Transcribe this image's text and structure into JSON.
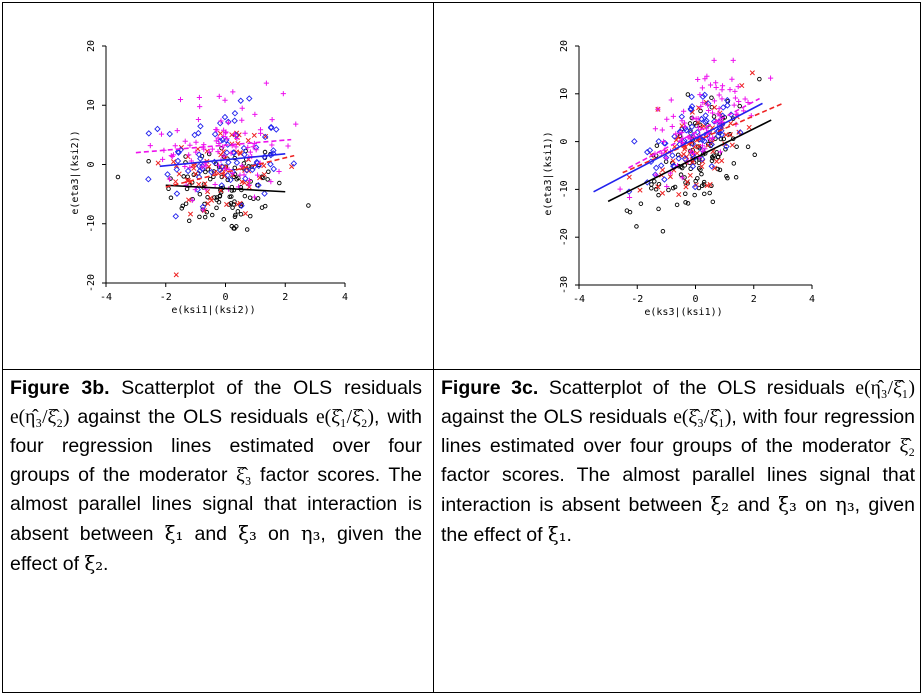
{
  "chart_data": [
    {
      "type": "scatter",
      "panel": "3b",
      "xlabel": "e(ksi1|(ksi2))",
      "ylabel": "e(eta3|(ksi2))",
      "xlim": [
        -4,
        4
      ],
      "ylim": [
        -20,
        20
      ],
      "xticks": [
        "-4",
        "-2",
        "0",
        "2",
        "4"
      ],
      "yticks": [
        "-20",
        "-10",
        "0",
        "10",
        "20"
      ],
      "grid": false,
      "marker_groups": [
        {
          "marker": "circle",
          "color": "#000000",
          "center": [
            0.0,
            -4.0
          ],
          "spread": [
            1.0,
            4.0
          ],
          "count": 110
        },
        {
          "marker": "cross",
          "color": "#ee2222",
          "center": [
            -0.1,
            -1.0
          ],
          "spread": [
            1.0,
            4.2
          ],
          "count": 70
        },
        {
          "marker": "diamond",
          "color": "#2222ee",
          "center": [
            -0.1,
            1.0
          ],
          "spread": [
            1.0,
            4.2
          ],
          "count": 75
        },
        {
          "marker": "plus",
          "color": "#ee11ee",
          "center": [
            0.0,
            3.0
          ],
          "spread": [
            1.0,
            4.6
          ],
          "count": 95
        }
      ],
      "regression_lines": [
        {
          "color": "#000000",
          "dash": "solid",
          "x": [
            -2.0,
            2.0
          ],
          "y": [
            -3.5,
            -4.6
          ]
        },
        {
          "color": "#ee2222",
          "dash": "dashed",
          "x": [
            -2.0,
            2.3
          ],
          "y": [
            -3.8,
            1.5
          ]
        },
        {
          "color": "#2222ee",
          "dash": "solid",
          "x": [
            -2.2,
            2.0
          ],
          "y": [
            -0.3,
            1.8
          ]
        },
        {
          "color": "#ee11ee",
          "dash": "dashed",
          "x": [
            -3.0,
            2.2
          ],
          "y": [
            2.0,
            4.2
          ]
        }
      ]
    },
    {
      "type": "scatter",
      "panel": "3c",
      "xlabel": "e(ks3|(ksi1))",
      "ylabel": "e(eta3|(ksi1))",
      "xlim": [
        -4,
        4
      ],
      "ylim": [
        -30,
        20
      ],
      "xticks": [
        "-4",
        "-2",
        "0",
        "2",
        "4"
      ],
      "yticks": [
        "-30",
        "-20",
        "-10",
        "0",
        "10",
        "20"
      ],
      "grid": false,
      "marker_groups": [
        {
          "marker": "circle",
          "color": "#000000",
          "center": [
            0.0,
            -4.5
          ],
          "spread": [
            1.0,
            5.0
          ],
          "slope": 3.6,
          "count": 110
        },
        {
          "marker": "cross",
          "color": "#ee2222",
          "center": [
            0.0,
            -1.0
          ],
          "spread": [
            1.0,
            4.0
          ],
          "slope": 3.6,
          "count": 70
        },
        {
          "marker": "diamond",
          "color": "#2222ee",
          "center": [
            0.0,
            0.5
          ],
          "spread": [
            1.0,
            4.0
          ],
          "slope": 3.6,
          "count": 75
        },
        {
          "marker": "plus",
          "color": "#ee11ee",
          "center": [
            0.0,
            3.5
          ],
          "spread": [
            1.0,
            4.5
          ],
          "slope": 3.6,
          "count": 95
        }
      ],
      "regression_lines": [
        {
          "color": "#000000",
          "dash": "solid",
          "x": [
            -3.0,
            2.6
          ],
          "y": [
            -12.5,
            4.5
          ]
        },
        {
          "color": "#ee2222",
          "dash": "dashed",
          "x": [
            -2.5,
            3.0
          ],
          "y": [
            -6.5,
            8.0
          ]
        },
        {
          "color": "#2222ee",
          "dash": "solid",
          "x": [
            -3.5,
            2.3
          ],
          "y": [
            -10.5,
            8.0
          ]
        },
        {
          "color": "#ee11ee",
          "dash": "dashed",
          "x": [
            -2.3,
            2.2
          ],
          "y": [
            -5.5,
            9.0
          ]
        }
      ]
    }
  ],
  "captions": {
    "b": {
      "title": "Figure 3b.",
      "t1": " Scatterplot of the OLS residuals ",
      "m1": "e(η̂₃/ξ̂₂)",
      "t2": " against the OLS residuals ",
      "m2": "e(ξ̂₁/ξ̂₂)",
      "t3": ", with four regression lines estimated over four groups of the moderator ",
      "m3": "ξ̂₃",
      "t4": " factor scores. The almost parallel lines signal that interaction is absent between ",
      "s1": "ξ₁",
      "t5": " and ",
      "s2": "ξ₃",
      "t6": " on ",
      "s3": "η₃",
      "t7": ", given the effect of ",
      "s4": "ξ₂",
      "t8": "."
    },
    "c": {
      "title": "Figure 3c.",
      "t1": " Scatterplot of the OLS residuals ",
      "m1": "e(η̂₃/ξ̂₁)",
      "t2": " against the OLS residuals ",
      "m2": "e(ξ̂₃/ξ̂₁)",
      "t3": ", with four regression lines estimated over four groups of the moderator ",
      "m3": "ξ̂₂",
      "t4": " factor scores. The almost parallel lines signal that interaction is absent between ",
      "s1": "ξ₂",
      "t5": " and ",
      "s2": "ξ₃",
      "t6": " on ",
      "s3": "η₃",
      "t7": ", given the effect of ",
      "s4": "ξ₁",
      "t8": "."
    }
  }
}
